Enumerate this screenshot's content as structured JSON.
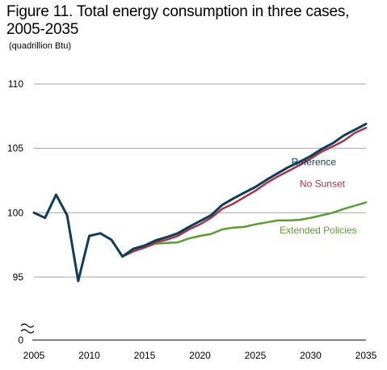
{
  "chart_data": {
    "type": "line",
    "title": "Figure 11. Total energy consumption in three cases, 2005-2035",
    "subtitle": "(quadrillion Btu)",
    "xlim": [
      2005,
      2035
    ],
    "x_ticks": [
      "2005",
      "2010",
      "2015",
      "2020",
      "2025",
      "2030",
      "2035"
    ],
    "y_ticks": [
      "110",
      "105",
      "100",
      "95",
      "0"
    ],
    "ylim": [
      93,
      110
    ],
    "axis_break": true,
    "grid": "horizontal",
    "series": [
      {
        "name": "Extended Policies",
        "color": "#5b9c32",
        "x": [
          2013,
          2014,
          2015,
          2016,
          2017,
          2018,
          2019,
          2020,
          2021,
          2022,
          2023,
          2024,
          2025,
          2026,
          2027,
          2028,
          2029,
          2030,
          2031,
          2032,
          2033,
          2034,
          2035
        ],
        "values": [
          96.6,
          97.0,
          97.3,
          97.6,
          97.65,
          97.7,
          98.0,
          98.2,
          98.35,
          98.7,
          98.85,
          98.9,
          99.1,
          99.25,
          99.4,
          99.4,
          99.45,
          99.6,
          99.8,
          100.0,
          100.3,
          100.55,
          100.8
        ]
      },
      {
        "name": "No Sunset",
        "color": "#a8344a",
        "x": [
          2013,
          2014,
          2015,
          2016,
          2017,
          2018,
          2019,
          2020,
          2021,
          2022,
          2023,
          2024,
          2025,
          2026,
          2027,
          2028,
          2029,
          2030,
          2031,
          2032,
          2033,
          2034,
          2035
        ],
        "values": [
          96.6,
          97.0,
          97.3,
          97.7,
          97.9,
          98.2,
          98.7,
          99.1,
          99.6,
          100.3,
          100.7,
          101.2,
          101.7,
          102.3,
          102.8,
          103.25,
          103.7,
          104.2,
          104.75,
          105.15,
          105.6,
          106.2,
          106.6
        ]
      },
      {
        "name": "Reference",
        "color": "#0f3c57",
        "x": [
          2005,
          2006,
          2007,
          2008,
          2009,
          2010,
          2011,
          2012,
          2013,
          2014,
          2015,
          2016,
          2017,
          2018,
          2019,
          2020,
          2021,
          2022,
          2023,
          2024,
          2025,
          2026,
          2027,
          2028,
          2029,
          2030,
          2031,
          2032,
          2033,
          2034,
          2035
        ],
        "values": [
          100.0,
          99.6,
          101.4,
          99.8,
          94.7,
          98.2,
          98.4,
          97.9,
          96.6,
          97.2,
          97.45,
          97.85,
          98.1,
          98.4,
          98.9,
          99.35,
          99.8,
          100.6,
          101.1,
          101.55,
          102.0,
          102.55,
          103.05,
          103.55,
          103.95,
          104.4,
          104.95,
          105.4,
          106.0,
          106.45,
          106.9
        ]
      }
    ]
  }
}
